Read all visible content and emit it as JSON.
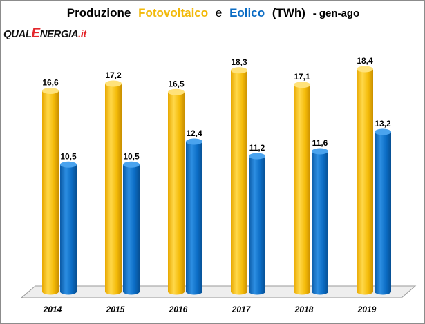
{
  "title": {
    "part1": "Produzione",
    "fotovoltaico": "Fotovoltaico",
    "conj": "e",
    "eolico": "Eolico",
    "unit": "(TWh)",
    "period": "- gen-ago"
  },
  "logo": {
    "part1": "QUAL",
    "big_letter": "E",
    "part2": "NERGIA",
    "suffix": ".it"
  },
  "colors": {
    "fotovoltaico": "#f5bd0a",
    "eolico": "#0b6cc4",
    "floor": "#eeeeee"
  },
  "chart_data": {
    "type": "bar",
    "categories": [
      "2014",
      "2015",
      "2016",
      "2017",
      "2018",
      "2019"
    ],
    "series": [
      {
        "name": "Fotovoltaico",
        "values": [
          16.6,
          17.2,
          16.5,
          18.3,
          17.1,
          18.4
        ],
        "labels": [
          "16,6",
          "17,2",
          "16,5",
          "18,3",
          "17,1",
          "18,4"
        ]
      },
      {
        "name": "Eolico",
        "values": [
          10.5,
          10.5,
          12.4,
          11.2,
          11.6,
          13.2
        ],
        "labels": [
          "10,5",
          "10,5",
          "12,4",
          "11,2",
          "11,6",
          "13,2"
        ]
      }
    ],
    "ylim": [
      0,
      20
    ],
    "bar_style": "3d-cylinder",
    "grid": false,
    "legend": "none (series named in title)"
  }
}
